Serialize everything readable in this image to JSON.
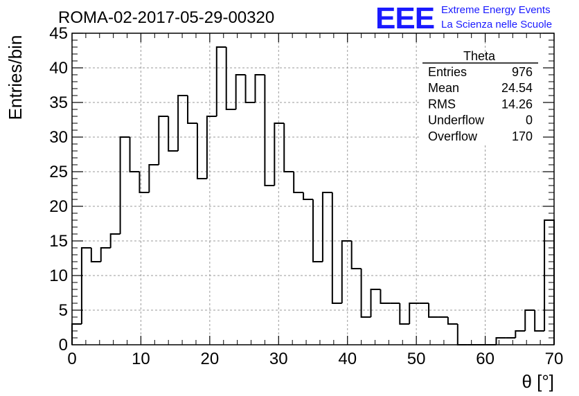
{
  "title": "ROMA-02-2017-05-29-00320",
  "logo": {
    "mark": "EEE",
    "line1": "Extreme Energy Events",
    "line2": "La Scienza nelle Scuole",
    "color": "#1a1aff"
  },
  "stats": {
    "name": "Theta",
    "rows": [
      {
        "label": "Entries",
        "value": "976"
      },
      {
        "label": "Mean",
        "value": "24.54"
      },
      {
        "label": "RMS",
        "value": "14.26"
      },
      {
        "label": "Underflow",
        "value": "0"
      },
      {
        "label": "Overflow",
        "value": "170"
      }
    ]
  },
  "chart_data": {
    "type": "histogram",
    "xlabel": "θ [°]",
    "ylabel": "Entries/bin",
    "xlim": [
      0,
      70
    ],
    "ylim": [
      0,
      45
    ],
    "bin_width": 1.4,
    "x_ticks": [
      0,
      10,
      20,
      30,
      40,
      50,
      60,
      70
    ],
    "y_ticks": [
      0,
      5,
      10,
      15,
      20,
      25,
      30,
      35,
      40,
      45
    ],
    "grid": true,
    "bin_edges_start": 0,
    "values": [
      3,
      14,
      12,
      14,
      16,
      30,
      25,
      22,
      26,
      33,
      28,
      36,
      32,
      24,
      33,
      43,
      34,
      39,
      35,
      39,
      23,
      32,
      25,
      22,
      21,
      12,
      22,
      6,
      15,
      11,
      4,
      8,
      6,
      6,
      3,
      6,
      6,
      4,
      4,
      3,
      0,
      0,
      0,
      0,
      1,
      1,
      2,
      5,
      2,
      18
    ],
    "line_color": "#000000"
  }
}
